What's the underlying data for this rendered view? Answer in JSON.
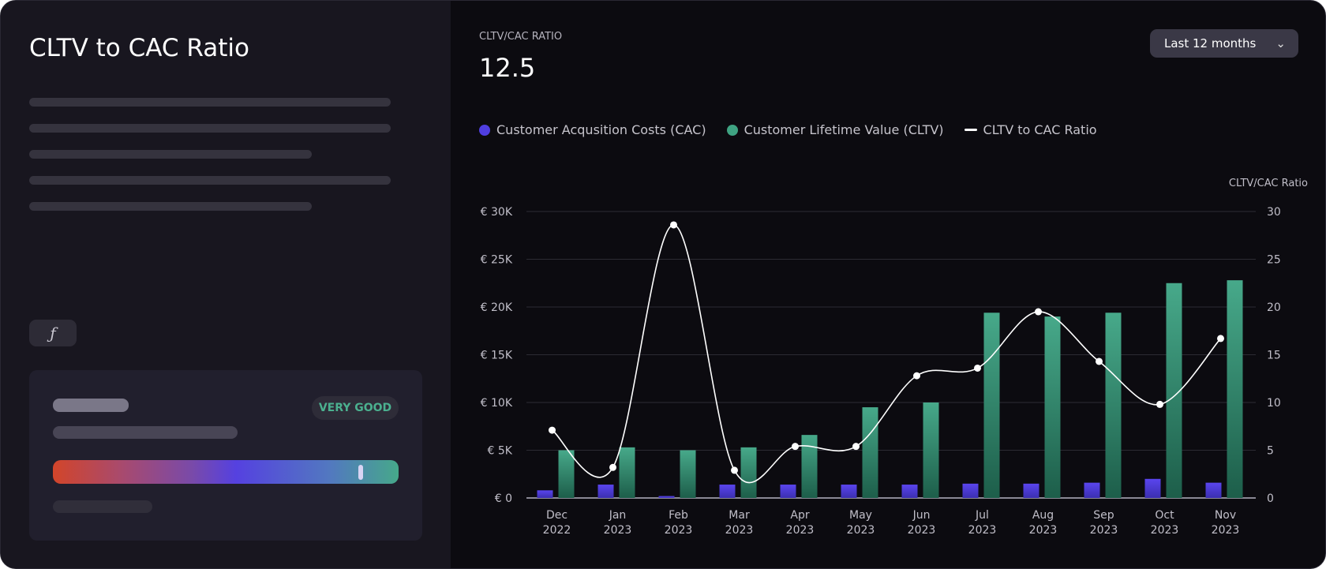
{
  "left": {
    "title": "CLTV to CAC Ratio",
    "formula_icon": "function-icon",
    "score_badge": "VERY GOOD",
    "score_position": 0.89
  },
  "header": {
    "metric_label": "CLTV/CAC RATIO",
    "metric_value": "12.5",
    "range_select": "Last 12 months"
  },
  "colors": {
    "cac": "#4f3ee0",
    "cltv": "#3fa382",
    "ratio": "#ffffff"
  },
  "chart_data": {
    "type": "bar",
    "categories": [
      [
        "Dec",
        "2022"
      ],
      [
        "Jan",
        "2023"
      ],
      [
        "Feb",
        "2023"
      ],
      [
        "Mar",
        "2023"
      ],
      [
        "Apr",
        "2023"
      ],
      [
        "May",
        "2023"
      ],
      [
        "Jun",
        "2023"
      ],
      [
        "Jul",
        "2023"
      ],
      [
        "Aug",
        "2023"
      ],
      [
        "Sep",
        "2023"
      ],
      [
        "Oct",
        "2023"
      ],
      [
        "Nov",
        "2023"
      ]
    ],
    "series": [
      {
        "name": "Customer Acqusition Costs (CAC)",
        "type": "bar",
        "axis": "left",
        "values": [
          800,
          1400,
          200,
          1400,
          1400,
          1400,
          1400,
          1500,
          1500,
          1600,
          2000,
          1600
        ]
      },
      {
        "name": "Customer Lifetime Value (CLTV)",
        "type": "bar",
        "axis": "left",
        "values": [
          5000,
          5300,
          5000,
          5300,
          6600,
          9500,
          10000,
          19400,
          19000,
          19400,
          22500,
          22800
        ]
      },
      {
        "name": "CLTV to CAC Ratio",
        "type": "line",
        "axis": "right",
        "values": [
          7.1,
          3.2,
          28.6,
          2.9,
          5.4,
          5.4,
          12.8,
          13.6,
          19.5,
          14.3,
          9.8,
          16.7
        ]
      }
    ],
    "y_left": {
      "ticks": [
        "€ 0",
        "€ 5K",
        "€ 10K",
        "€ 15K",
        "€ 20K",
        "€ 25K",
        "€ 30K"
      ],
      "range": [
        0,
        30000
      ]
    },
    "y_right": {
      "label": "CLTV/CAC Ratio",
      "ticks": [
        "0",
        "5",
        "10",
        "15",
        "20",
        "25",
        "30"
      ],
      "range": [
        0,
        30
      ]
    },
    "grid": true,
    "legend": "top-left"
  }
}
